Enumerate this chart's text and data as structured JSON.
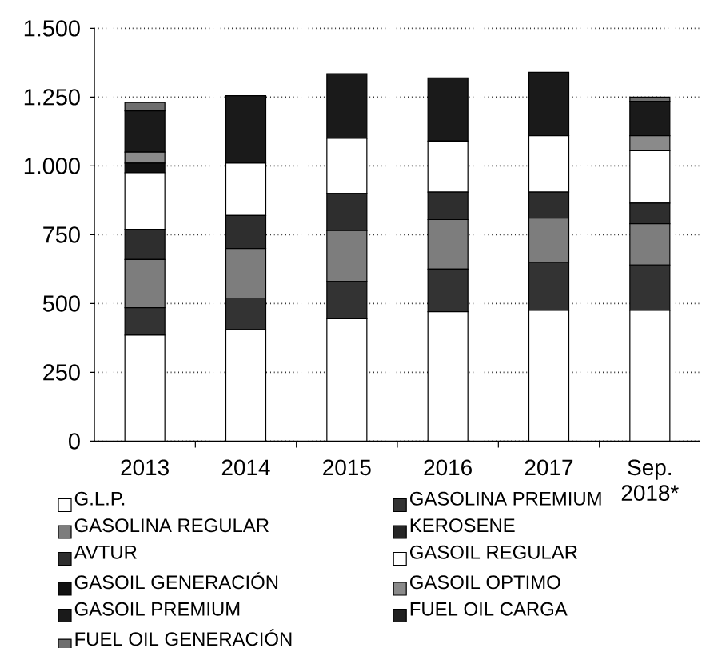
{
  "chart_data": {
    "type": "bar",
    "stacked": true,
    "categories": [
      "2013",
      "2014",
      "2015",
      "2016",
      "2017",
      "Sep. 2018*"
    ],
    "ylim": [
      0,
      1500
    ],
    "yticks": [
      0,
      250,
      500,
      750,
      {
        "value": 1000,
        "label": "1.000"
      },
      {
        "value": 1250,
        "label": "1.250"
      },
      {
        "value": 1500,
        "label": "1.500"
      }
    ],
    "grid": "y",
    "legend": "bottom",
    "series": [
      {
        "name": "G.L.P.",
        "color": "#ffffff",
        "values": [
          385,
          405,
          445,
          470,
          475,
          475
        ]
      },
      {
        "name": "GASOLINA PREMIUM",
        "color": "#333333",
        "values": [
          100,
          115,
          135,
          155,
          175,
          165
        ]
      },
      {
        "name": "GASOLINA REGULAR",
        "color": "#7d7d7d",
        "values": [
          175,
          180,
          185,
          180,
          160,
          150
        ]
      },
      {
        "name": "KEROSENE",
        "color": "#262626",
        "values": [
          0,
          0,
          0,
          0,
          0,
          0
        ]
      },
      {
        "name": "AVTUR",
        "color": "#2e2e2e",
        "values": [
          110,
          120,
          135,
          100,
          95,
          75
        ]
      },
      {
        "name": "GASOIL REGULAR",
        "color": "#ffffff",
        "values": [
          205,
          190,
          200,
          185,
          205,
          190
        ]
      },
      {
        "name": "GASOIL GENERACIÓN",
        "color": "#111111",
        "values": [
          35,
          0,
          0,
          0,
          0,
          0
        ]
      },
      {
        "name": "GASOIL OPTIMO",
        "color": "#8a8a8a",
        "values": [
          40,
          0,
          0,
          0,
          0,
          55
        ]
      },
      {
        "name": "GASOIL PREMIUM",
        "color": "#1a1a1a",
        "values": [
          150,
          245,
          235,
          230,
          230,
          125
        ]
      },
      {
        "name": "FUEL OIL CARGA",
        "color": "#202020",
        "values": [
          0,
          0,
          0,
          0,
          0,
          0
        ]
      },
      {
        "name": "FUEL OIL GENERACIÓN",
        "color": "#6e6e6e",
        "values": [
          30,
          0,
          0,
          0,
          0,
          15
        ]
      }
    ]
  }
}
